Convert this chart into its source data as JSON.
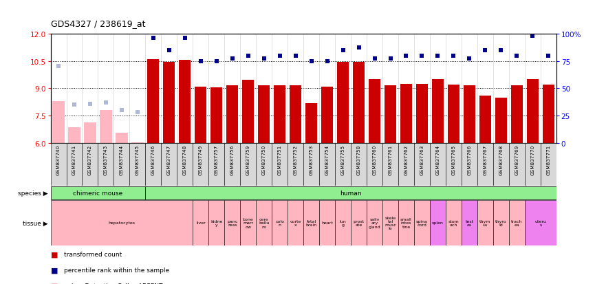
{
  "title": "GDS4327 / 238619_at",
  "samples": [
    "GSM837740",
    "GSM837741",
    "GSM837742",
    "GSM837743",
    "GSM837744",
    "GSM837745",
    "GSM837746",
    "GSM837747",
    "GSM837748",
    "GSM837749",
    "GSM837757",
    "GSM837756",
    "GSM837759",
    "GSM837750",
    "GSM837751",
    "GSM837752",
    "GSM837753",
    "GSM837754",
    "GSM837755",
    "GSM837758",
    "GSM837760",
    "GSM837761",
    "GSM837762",
    "GSM837763",
    "GSM837764",
    "GSM837765",
    "GSM837766",
    "GSM837767",
    "GSM837768",
    "GSM837769",
    "GSM837770",
    "GSM837771"
  ],
  "values": [
    8.3,
    6.85,
    7.15,
    7.8,
    6.55,
    6.05,
    10.58,
    10.45,
    10.55,
    9.1,
    9.05,
    9.15,
    9.45,
    9.15,
    9.15,
    9.15,
    8.2,
    9.1,
    10.45,
    10.45,
    9.5,
    9.15,
    9.25,
    9.25,
    9.5,
    9.2,
    9.15,
    8.6,
    8.5,
    9.15,
    9.5,
    9.2
  ],
  "percentiles_pct": [
    70,
    35,
    36,
    37,
    30,
    28,
    96,
    85,
    96,
    75,
    75,
    77,
    80,
    77,
    80,
    80,
    75,
    75,
    85,
    87,
    77,
    77,
    80,
    80,
    80,
    80,
    77,
    85,
    85,
    80,
    98,
    80
  ],
  "absent": [
    true,
    true,
    true,
    true,
    true,
    true,
    false,
    false,
    false,
    false,
    false,
    false,
    false,
    false,
    false,
    false,
    false,
    false,
    false,
    false,
    false,
    false,
    false,
    false,
    false,
    false,
    false,
    false,
    false,
    false,
    false,
    false
  ],
  "ylim_left": [
    6,
    12
  ],
  "ylim_right": [
    0,
    100
  ],
  "bar_color_present": "#cc0000",
  "bar_color_absent": "#ffb6c1",
  "dot_color_present": "#00008b",
  "dot_color_absent": "#b0b8d8",
  "bg_color": "#ffffff",
  "yticks_left": [
    6,
    7.5,
    9,
    10.5,
    12
  ],
  "yticks_right": [
    0,
    25,
    50,
    75,
    100
  ],
  "species_groups": [
    {
      "label": "chimeric mouse",
      "start": 0,
      "end": 5,
      "color": "#90ee90"
    },
    {
      "label": "human",
      "start": 6,
      "end": 31,
      "color": "#90ee90"
    }
  ],
  "tissue_groups": [
    {
      "label": "hepatocytes",
      "start": 0,
      "end": 8,
      "color": "#ffb6c1"
    },
    {
      "label": "liver",
      "start": 9,
      "end": 9,
      "color": "#ffb6c1"
    },
    {
      "label": "kidne\ny",
      "start": 10,
      "end": 10,
      "color": "#ffb6c1"
    },
    {
      "label": "panc\nreas",
      "start": 11,
      "end": 11,
      "color": "#ffb6c1"
    },
    {
      "label": "bone\nmarr\now",
      "start": 12,
      "end": 12,
      "color": "#ffb6c1"
    },
    {
      "label": "cere\nbellu\nm",
      "start": 13,
      "end": 13,
      "color": "#ffb6c1"
    },
    {
      "label": "colo\nn",
      "start": 14,
      "end": 14,
      "color": "#ffb6c1"
    },
    {
      "label": "corte\nx",
      "start": 15,
      "end": 15,
      "color": "#ffb6c1"
    },
    {
      "label": "fetal\nbrain",
      "start": 16,
      "end": 16,
      "color": "#ffb6c1"
    },
    {
      "label": "heart",
      "start": 17,
      "end": 17,
      "color": "#ffb6c1"
    },
    {
      "label": "lun\ng",
      "start": 18,
      "end": 18,
      "color": "#ffb6c1"
    },
    {
      "label": "prost\nate",
      "start": 19,
      "end": 19,
      "color": "#ffb6c1"
    },
    {
      "label": "saliv\nary\ngland",
      "start": 20,
      "end": 20,
      "color": "#ffb6c1"
    },
    {
      "label": "skele\ntal\nmusc\nle",
      "start": 21,
      "end": 21,
      "color": "#ffb6c1"
    },
    {
      "label": "small\nintes\ntine",
      "start": 22,
      "end": 22,
      "color": "#ffb6c1"
    },
    {
      "label": "spina\ncord",
      "start": 23,
      "end": 23,
      "color": "#ffb6c1"
    },
    {
      "label": "splen",
      "start": 24,
      "end": 24,
      "color": "#ee82ee"
    },
    {
      "label": "stom\nach",
      "start": 25,
      "end": 25,
      "color": "#ffb6c1"
    },
    {
      "label": "test\nes",
      "start": 26,
      "end": 26,
      "color": "#ee82ee"
    },
    {
      "label": "thym\nus",
      "start": 27,
      "end": 27,
      "color": "#ffb6c1"
    },
    {
      "label": "thyro\nid",
      "start": 28,
      "end": 28,
      "color": "#ffb6c1"
    },
    {
      "label": "trach\nea",
      "start": 29,
      "end": 29,
      "color": "#ffb6c1"
    },
    {
      "label": "uteru\ns",
      "start": 30,
      "end": 31,
      "color": "#ee82ee"
    }
  ]
}
